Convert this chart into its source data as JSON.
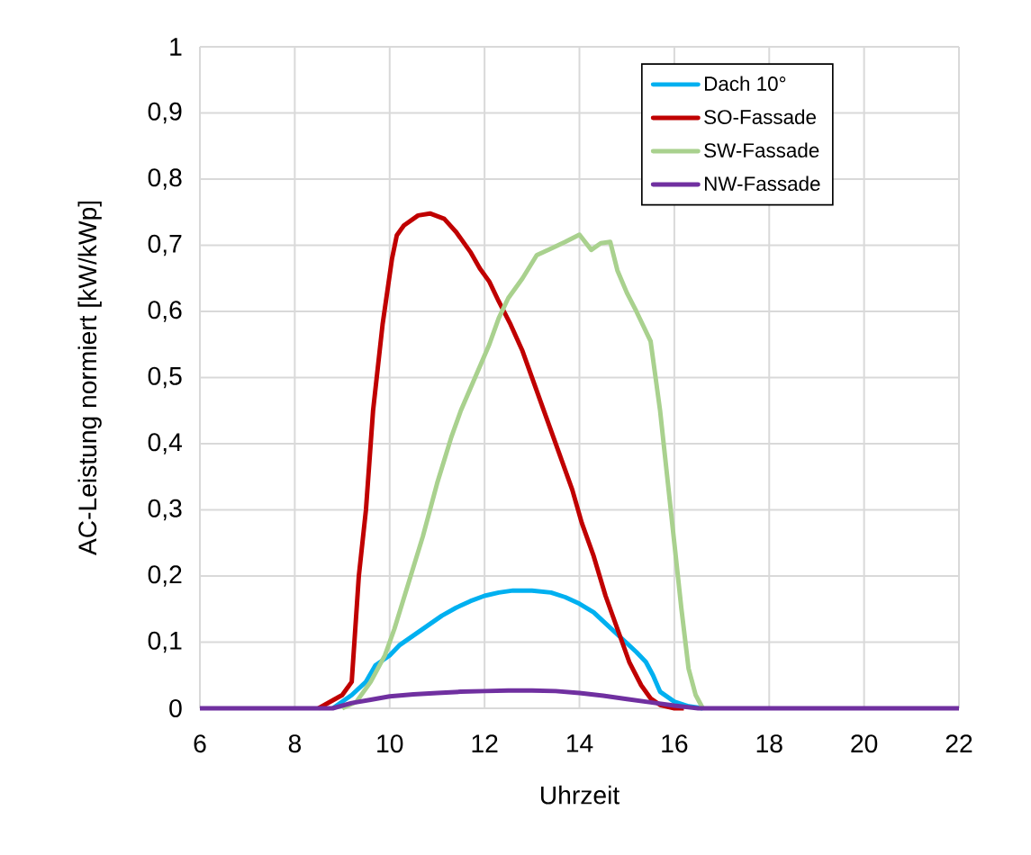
{
  "chart_data": {
    "type": "line",
    "xlabel": "Uhrzeit",
    "ylabel": "AC-Leistung normiert [kW/kWp]",
    "xlim": [
      6,
      22
    ],
    "xticks": [
      6,
      8,
      10,
      12,
      14,
      16,
      18,
      20,
      22
    ],
    "ylim": [
      0,
      1
    ],
    "yticks": [
      0,
      {
        "value": 0.1,
        "label": "0,1"
      },
      {
        "value": 0.2,
        "label": "0,2"
      },
      {
        "value": 0.3,
        "label": "0,3"
      },
      {
        "value": 0.4,
        "label": "0,4"
      },
      {
        "value": 0.5,
        "label": "0,5"
      },
      {
        "value": 0.6,
        "label": "0,6"
      },
      {
        "value": 0.7,
        "label": "0,7"
      },
      {
        "value": 0.8,
        "label": "0,8"
      },
      {
        "value": 0.9,
        "label": "0,9"
      },
      1
    ],
    "grid": true,
    "legend": "top right",
    "marker": "none",
    "line_style": "solid",
    "series": [
      {
        "name": "Dach 10°",
        "color": "#00b0f0",
        "x": [
          8.8,
          9.2,
          9.5,
          9.7,
          10.0,
          10.2,
          10.5,
          10.8,
          11.1,
          11.4,
          11.7,
          12.0,
          12.3,
          12.6,
          13.0,
          13.4,
          13.7,
          14.0,
          14.3,
          14.6,
          14.9,
          15.2,
          15.4,
          15.55,
          15.7,
          16.0,
          16.3,
          16.6
        ],
        "values": [
          0,
          0.02,
          0.04,
          0.065,
          0.08,
          0.095,
          0.11,
          0.125,
          0.14,
          0.152,
          0.162,
          0.17,
          0.175,
          0.178,
          0.178,
          0.175,
          0.168,
          0.158,
          0.145,
          0.125,
          0.105,
          0.085,
          0.07,
          0.05,
          0.025,
          0.01,
          0.003,
          0
        ]
      },
      {
        "name": "SO-Fassade",
        "color": "#c00000",
        "x": [
          8.5,
          9.0,
          9.2,
          9.35,
          9.5,
          9.65,
          9.85,
          10.05,
          10.15,
          10.3,
          10.6,
          10.85,
          11.15,
          11.4,
          11.7,
          11.9,
          12.1,
          12.3,
          12.55,
          12.8,
          13.05,
          13.3,
          13.6,
          13.85,
          14.05,
          14.3,
          14.55,
          14.8,
          15.05,
          15.3,
          15.5,
          15.7,
          16.0,
          16.2
        ],
        "values": [
          0,
          0.02,
          0.04,
          0.2,
          0.3,
          0.45,
          0.58,
          0.68,
          0.715,
          0.73,
          0.745,
          0.748,
          0.74,
          0.72,
          0.69,
          0.665,
          0.645,
          0.615,
          0.58,
          0.54,
          0.49,
          0.44,
          0.38,
          0.33,
          0.28,
          0.23,
          0.17,
          0.12,
          0.07,
          0.035,
          0.015,
          0.005,
          0,
          0
        ]
      },
      {
        "name": "SW-Fassade",
        "color": "#a9d18e",
        "x": [
          9.0,
          9.3,
          9.6,
          9.9,
          10.1,
          10.4,
          10.7,
          11.0,
          11.3,
          11.5,
          11.8,
          12.1,
          12.3,
          12.5,
          12.8,
          13.1,
          13.4,
          13.7,
          14.0,
          14.25,
          14.45,
          14.65,
          14.8,
          15.0,
          15.2,
          15.5,
          15.7,
          15.85,
          16.0,
          16.15,
          16.3,
          16.45,
          16.6
        ],
        "values": [
          0,
          0.01,
          0.04,
          0.08,
          0.12,
          0.19,
          0.26,
          0.34,
          0.41,
          0.45,
          0.5,
          0.55,
          0.59,
          0.62,
          0.65,
          0.685,
          0.695,
          0.705,
          0.716,
          0.693,
          0.703,
          0.705,
          0.662,
          0.628,
          0.6,
          0.555,
          0.45,
          0.35,
          0.25,
          0.15,
          0.06,
          0.02,
          0
        ]
      },
      {
        "name": "NW-Fassade",
        "color": "#7030a0",
        "x": [
          6,
          8.8,
          9.2,
          9.6,
          10.0,
          10.5,
          11.0,
          11.5,
          12.0,
          12.5,
          13.0,
          13.5,
          14.0,
          14.5,
          15.0,
          15.5,
          16.0,
          16.5,
          22
        ],
        "values": [
          0,
          0,
          0.008,
          0.013,
          0.018,
          0.021,
          0.023,
          0.025,
          0.026,
          0.027,
          0.027,
          0.026,
          0.023,
          0.019,
          0.014,
          0.009,
          0.004,
          0,
          0
        ]
      }
    ]
  }
}
